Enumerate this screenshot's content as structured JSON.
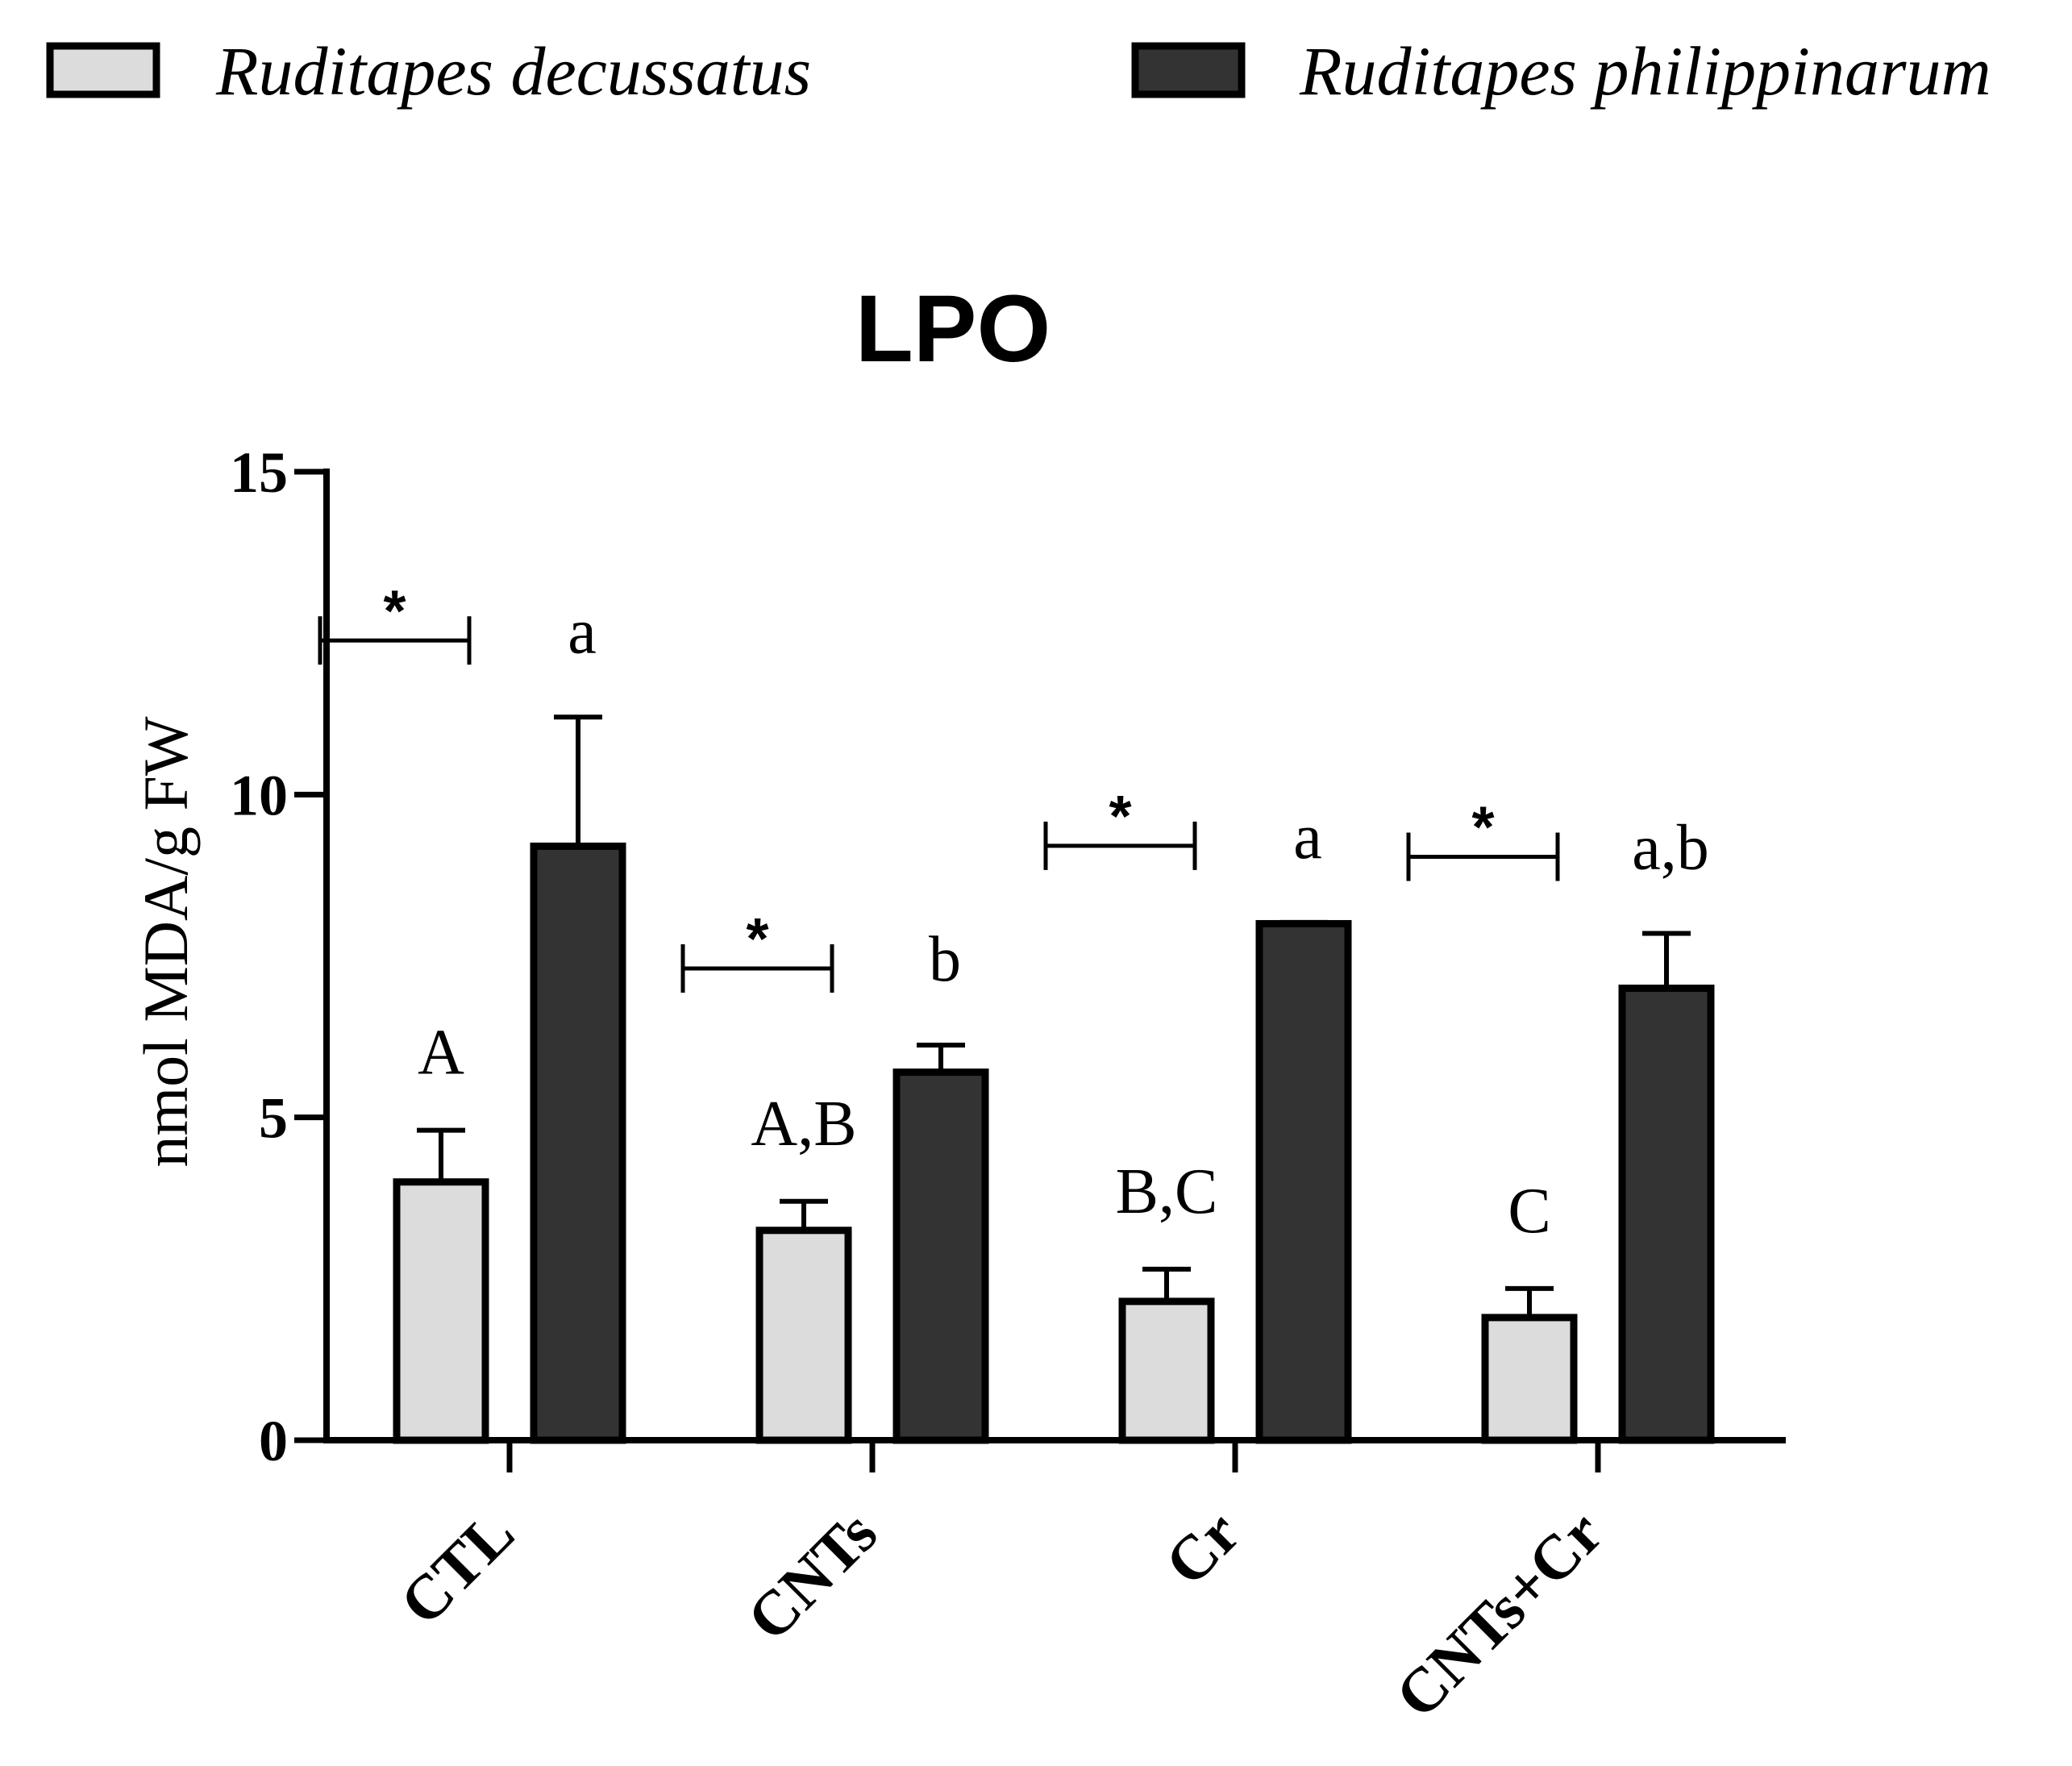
{
  "chart_data": {
    "type": "bar",
    "title": "LPO",
    "xlabel": "",
    "ylabel": "nmol MDA/g FW",
    "ylim": [
      0,
      15
    ],
    "yticks": [
      0,
      5,
      10,
      15
    ],
    "categories": [
      "CTL",
      "CNTs",
      "Cr",
      "CNTs+Cr"
    ],
    "series": [
      {
        "name": "Ruditapes decussatus",
        "color": "#dcdcdc",
        "values": [
          4.0,
          3.25,
          2.15,
          1.9
        ],
        "errors": [
          0.8,
          0.45,
          0.5,
          0.45
        ],
        "letters": [
          "A",
          "A,B",
          "B,C",
          "C"
        ]
      },
      {
        "name": "Ruditapes philippinarum",
        "color": "#333333",
        "values": [
          9.2,
          5.7,
          8.0,
          7.0
        ],
        "errors": [
          2.0,
          0.42,
          0.02,
          0.85
        ],
        "letters": [
          "a",
          "b",
          "a",
          "a,b"
        ]
      }
    ],
    "significance": [
      "*",
      "*",
      "*",
      "*"
    ],
    "legend_position": "top"
  }
}
